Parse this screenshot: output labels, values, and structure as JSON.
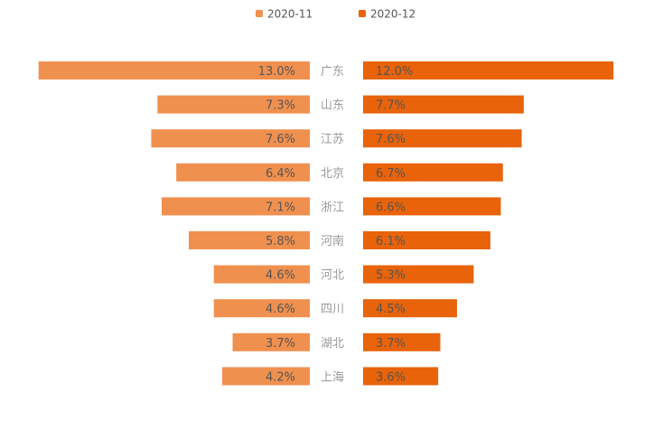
{
  "chart_data": {
    "type": "bar",
    "orientation": "horizontal-butterfly",
    "categories": [
      "广东",
      "山东",
      "江苏",
      "北京",
      "浙江",
      "河南",
      "河北",
      "四川",
      "湖北",
      "上海"
    ],
    "series": [
      {
        "name": "2020-11",
        "color": "#F0904E",
        "values": [
          13.0,
          7.3,
          7.6,
          6.4,
          7.1,
          5.8,
          4.6,
          4.6,
          3.7,
          4.2
        ],
        "labels": [
          "13.0%",
          "7.3%",
          "7.6%",
          "6.4%",
          "7.1%",
          "5.8%",
          "4.6%",
          "4.6%",
          "3.7%",
          "4.2%"
        ]
      },
      {
        "name": "2020-12",
        "color": "#E8630A",
        "values": [
          12.0,
          7.7,
          7.6,
          6.7,
          6.6,
          6.1,
          5.3,
          4.5,
          3.7,
          3.6
        ],
        "labels": [
          "12.0%",
          "7.7%",
          "7.6%",
          "6.7%",
          "6.6%",
          "6.1%",
          "5.3%",
          "4.5%",
          "3.7%",
          "3.6%"
        ]
      }
    ],
    "legend_position": "top-center",
    "grid": false
  }
}
